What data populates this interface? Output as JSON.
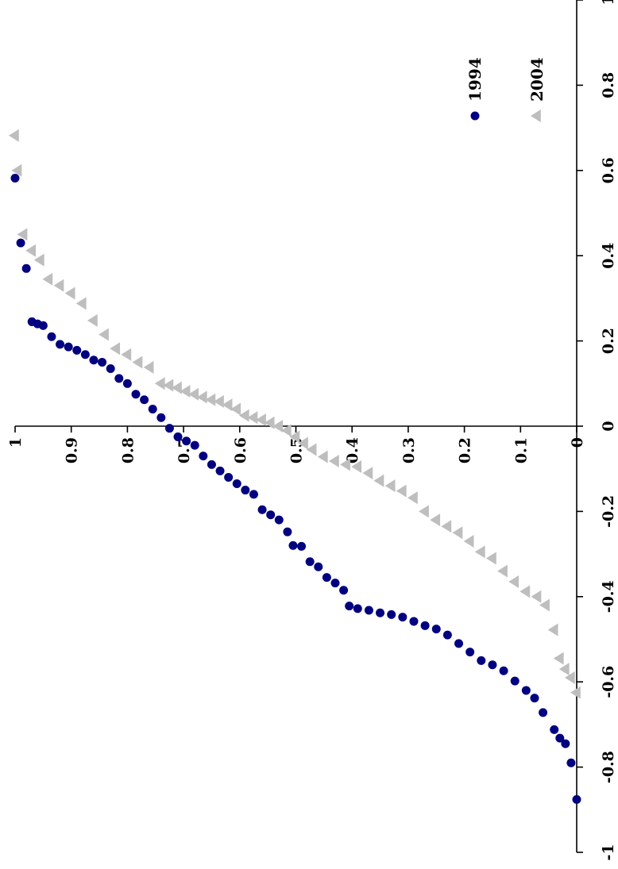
{
  "chart_data": {
    "type": "scatter",
    "orientation": "rotated 90 degrees clockwise",
    "title": "",
    "xlabel": "",
    "ylabel": "",
    "xlim": [
      0,
      1
    ],
    "ylim": [
      -1,
      1
    ],
    "x_ticks": [
      "0",
      "0.1",
      "0.2",
      "0.3",
      "0.4",
      "0.5",
      "0.6",
      "0.7",
      "0.8",
      "0.9",
      "1"
    ],
    "y_ticks": [
      "-1",
      "-0.8",
      "-0.6",
      "-0.4",
      "-0.2",
      "0",
      "0.2",
      "0.4",
      "0.6",
      "0.8",
      "1"
    ],
    "grid": false,
    "legend_position": "top-right",
    "series": [
      {
        "name": "1994",
        "color": "#000080",
        "marker": "circle",
        "points": [
          [
            0.0,
            -0.876
          ],
          [
            0.01,
            -0.79
          ],
          [
            0.02,
            -0.745
          ],
          [
            0.03,
            -0.732
          ],
          [
            0.04,
            -0.712
          ],
          [
            0.06,
            -0.672
          ],
          [
            0.075,
            -0.638
          ],
          [
            0.09,
            -0.62
          ],
          [
            0.11,
            -0.598
          ],
          [
            0.13,
            -0.574
          ],
          [
            0.15,
            -0.56
          ],
          [
            0.17,
            -0.55
          ],
          [
            0.19,
            -0.53
          ],
          [
            0.21,
            -0.51
          ],
          [
            0.23,
            -0.49
          ],
          [
            0.25,
            -0.476
          ],
          [
            0.27,
            -0.468
          ],
          [
            0.29,
            -0.458
          ],
          [
            0.31,
            -0.448
          ],
          [
            0.33,
            -0.442
          ],
          [
            0.35,
            -0.438
          ],
          [
            0.37,
            -0.432
          ],
          [
            0.39,
            -0.428
          ],
          [
            0.405,
            -0.422
          ],
          [
            0.415,
            -0.385
          ],
          [
            0.43,
            -0.368
          ],
          [
            0.445,
            -0.355
          ],
          [
            0.46,
            -0.33
          ],
          [
            0.475,
            -0.318
          ],
          [
            0.49,
            -0.282
          ],
          [
            0.505,
            -0.28
          ],
          [
            0.515,
            -0.248
          ],
          [
            0.53,
            -0.22
          ],
          [
            0.545,
            -0.208
          ],
          [
            0.56,
            -0.196
          ],
          [
            0.575,
            -0.16
          ],
          [
            0.59,
            -0.15
          ],
          [
            0.605,
            -0.135
          ],
          [
            0.62,
            -0.12
          ],
          [
            0.635,
            -0.105
          ],
          [
            0.65,
            -0.09
          ],
          [
            0.665,
            -0.07
          ],
          [
            0.68,
            -0.045
          ],
          [
            0.695,
            -0.035
          ],
          [
            0.71,
            -0.025
          ],
          [
            0.725,
            -0.005
          ],
          [
            0.74,
            0.02
          ],
          [
            0.755,
            0.04
          ],
          [
            0.77,
            0.062
          ],
          [
            0.785,
            0.075
          ],
          [
            0.8,
            0.1
          ],
          [
            0.815,
            0.112
          ],
          [
            0.83,
            0.135
          ],
          [
            0.845,
            0.15
          ],
          [
            0.86,
            0.155
          ],
          [
            0.875,
            0.168
          ],
          [
            0.89,
            0.178
          ],
          [
            0.905,
            0.186
          ],
          [
            0.92,
            0.192
          ],
          [
            0.935,
            0.21
          ],
          [
            0.95,
            0.236
          ],
          [
            0.96,
            0.24
          ],
          [
            0.97,
            0.245
          ],
          [
            0.98,
            0.37
          ],
          [
            0.99,
            0.43
          ],
          [
            1.0,
            0.582
          ]
        ]
      },
      {
        "name": "2004",
        "color": "#BEBEBE",
        "marker": "triangle",
        "points": [
          [
            0.0,
            -0.625
          ],
          [
            0.01,
            -0.59
          ],
          [
            0.02,
            -0.57
          ],
          [
            0.03,
            -0.545
          ],
          [
            0.04,
            -0.478
          ],
          [
            0.055,
            -0.42
          ],
          [
            0.07,
            -0.4
          ],
          [
            0.09,
            -0.388
          ],
          [
            0.11,
            -0.365
          ],
          [
            0.13,
            -0.34
          ],
          [
            0.15,
            -0.31
          ],
          [
            0.17,
            -0.295
          ],
          [
            0.19,
            -0.27
          ],
          [
            0.21,
            -0.25
          ],
          [
            0.23,
            -0.235
          ],
          [
            0.25,
            -0.22
          ],
          [
            0.27,
            -0.2
          ],
          [
            0.29,
            -0.168
          ],
          [
            0.31,
            -0.152
          ],
          [
            0.33,
            -0.14
          ],
          [
            0.35,
            -0.128
          ],
          [
            0.37,
            -0.11
          ],
          [
            0.39,
            -0.095
          ],
          [
            0.41,
            -0.09
          ],
          [
            0.43,
            -0.082
          ],
          [
            0.45,
            -0.072
          ],
          [
            0.47,
            -0.055
          ],
          [
            0.485,
            -0.04
          ],
          [
            0.5,
            -0.025
          ],
          [
            0.515,
            -0.01
          ],
          [
            0.53,
            0.0
          ],
          [
            0.545,
            0.008
          ],
          [
            0.56,
            0.015
          ],
          [
            0.575,
            0.02
          ],
          [
            0.59,
            0.025
          ],
          [
            0.605,
            0.04
          ],
          [
            0.62,
            0.05
          ],
          [
            0.635,
            0.058
          ],
          [
            0.65,
            0.062
          ],
          [
            0.665,
            0.068
          ],
          [
            0.68,
            0.075
          ],
          [
            0.695,
            0.082
          ],
          [
            0.71,
            0.09
          ],
          [
            0.725,
            0.096
          ],
          [
            0.74,
            0.1
          ],
          [
            0.76,
            0.138
          ],
          [
            0.78,
            0.15
          ],
          [
            0.8,
            0.168
          ],
          [
            0.82,
            0.182
          ],
          [
            0.84,
            0.215
          ],
          [
            0.86,
            0.248
          ],
          [
            0.88,
            0.288
          ],
          [
            0.9,
            0.312
          ],
          [
            0.92,
            0.33
          ],
          [
            0.94,
            0.345
          ],
          [
            0.955,
            0.39
          ],
          [
            0.97,
            0.412
          ],
          [
            0.985,
            0.45
          ],
          [
            0.995,
            0.6
          ],
          [
            1.0,
            0.682
          ]
        ]
      }
    ]
  }
}
